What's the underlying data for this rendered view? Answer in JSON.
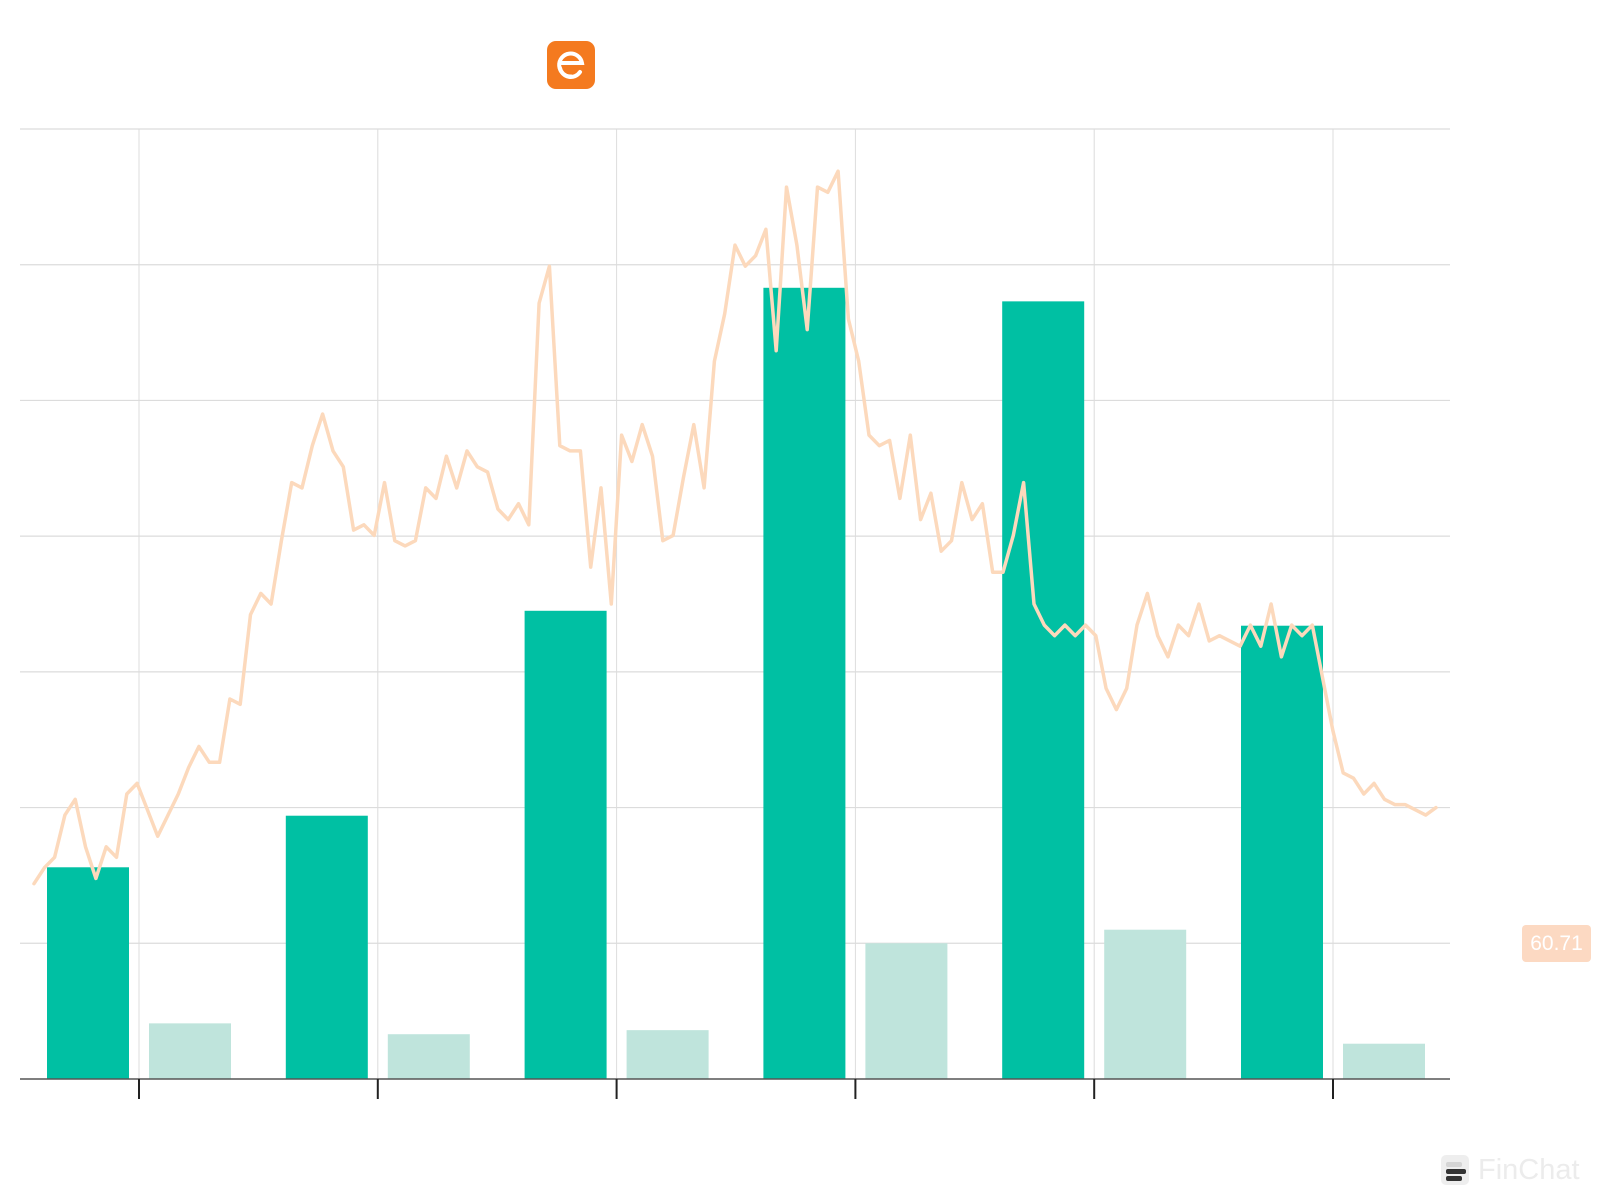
{
  "chart_data": {
    "type": "bar",
    "title": "",
    "xlabel": "",
    "ylabel": "",
    "grid": true,
    "colors": {
      "bar_primary": "#00c0a3",
      "bar_secondary": "#bfe4dc",
      "price_line": "#fcd9bc",
      "grid": "#dcdcdc",
      "axis": "#555555",
      "logo": "#f47a1f",
      "price_badge": "#fcd9c2"
    },
    "ylim": [
      0,
      7
    ],
    "categories": [
      "",
      "",
      "",
      "",
      "",
      ""
    ],
    "series": [
      {
        "name": "",
        "values": [
          1.56,
          1.94,
          3.45,
          5.83,
          5.73,
          3.34
        ]
      },
      {
        "name": "",
        "values": [
          0.41,
          0.33,
          0.36,
          1.0,
          1.1,
          0.26
        ]
      }
    ],
    "price_line": {
      "ylim": [
        35,
        125
      ],
      "current": 60.71,
      "current_label": "60.71",
      "values": [
        53.5,
        55,
        56,
        60,
        61.5,
        57,
        54,
        57,
        56,
        62,
        63,
        60.5,
        58,
        60,
        62,
        64.5,
        66.5,
        65,
        65,
        71,
        70.5,
        79,
        81,
        80,
        86,
        91.5,
        91,
        95,
        98,
        94.5,
        93,
        87,
        87.5,
        86.5,
        91.5,
        86,
        85.5,
        86,
        91,
        90,
        94,
        91,
        94.5,
        93,
        92.5,
        89,
        88,
        89.5,
        87.5,
        108.5,
        112,
        95,
        94.5,
        94.5,
        83.5,
        91,
        80,
        96,
        93.5,
        97,
        94,
        86,
        86.5,
        92,
        97,
        91,
        103,
        107.5,
        114,
        112,
        113,
        115.5,
        104,
        119.5,
        114,
        106,
        119.5,
        119,
        121,
        107,
        103,
        96,
        95,
        95.5,
        90,
        96,
        88,
        90.5,
        85,
        86,
        91.5,
        88,
        89.5,
        83,
        83,
        86.5,
        91.5,
        80,
        78,
        77,
        78,
        77,
        78,
        77,
        72,
        70,
        72,
        78,
        81,
        77,
        75,
        78,
        77,
        80,
        76.5,
        77,
        76.5,
        76,
        78,
        76,
        80,
        75,
        78,
        77,
        78,
        73,
        68,
        64,
        63.5,
        62,
        63,
        61.5,
        61,
        61,
        60.5,
        60,
        60.71
      ]
    }
  },
  "branding": {
    "logo_glyph": "e",
    "logo_icon": "company-logo-icon",
    "watermark_text": "FinChat",
    "watermark_icon": "finchat-logo-icon"
  }
}
